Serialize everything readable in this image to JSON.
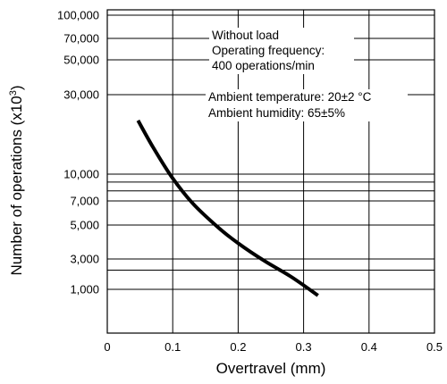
{
  "chart_data": {
    "type": "line",
    "xlabel": "Overtravel (mm)",
    "ylabel": "Number of operations (x10 3)",
    "ylabel_main": "Number of operations  (x10",
    "ylabel_sup": "3",
    "ylabel_close": ")",
    "xlim": [
      0,
      0.5
    ],
    "x_ticks": [
      {
        "value": 0,
        "label": "0"
      },
      {
        "value": 0.1,
        "label": "0.1"
      },
      {
        "value": 0.2,
        "label": "0.2"
      },
      {
        "value": 0.3,
        "label": "0.3"
      },
      {
        "value": 0.4,
        "label": "0.4"
      },
      {
        "value": 0.5,
        "label": "0.5"
      }
    ],
    "y_ticks": [
      {
        "value": 100000,
        "label": "100,000"
      },
      {
        "value": 70000,
        "label": "70,000"
      },
      {
        "value": 50000,
        "label": "50,000"
      },
      {
        "value": 30000,
        "label": "30,000"
      },
      {
        "value": 10000,
        "label": "10,000"
      },
      {
        "value": 7000,
        "label": "7,000"
      },
      {
        "value": 5000,
        "label": "5,000"
      },
      {
        "value": 3000,
        "label": "3,000"
      },
      {
        "value": 1000,
        "label": "1,000"
      }
    ],
    "grid": true,
    "series": [
      {
        "x": [
          0.047,
          0.07,
          0.098,
          0.13,
          0.17,
          0.2,
          0.24,
          0.28,
          0.322
        ],
        "y": [
          21000,
          14500,
          9700,
          6800,
          4800,
          3800,
          2800,
          1600,
          800
        ]
      }
    ],
    "annotations": [
      "Without load",
      "Operating frequency:",
      "400 operations/min",
      "Ambient temperature: 20±2 °C",
      "Ambient humidity: 65±5%"
    ]
  }
}
